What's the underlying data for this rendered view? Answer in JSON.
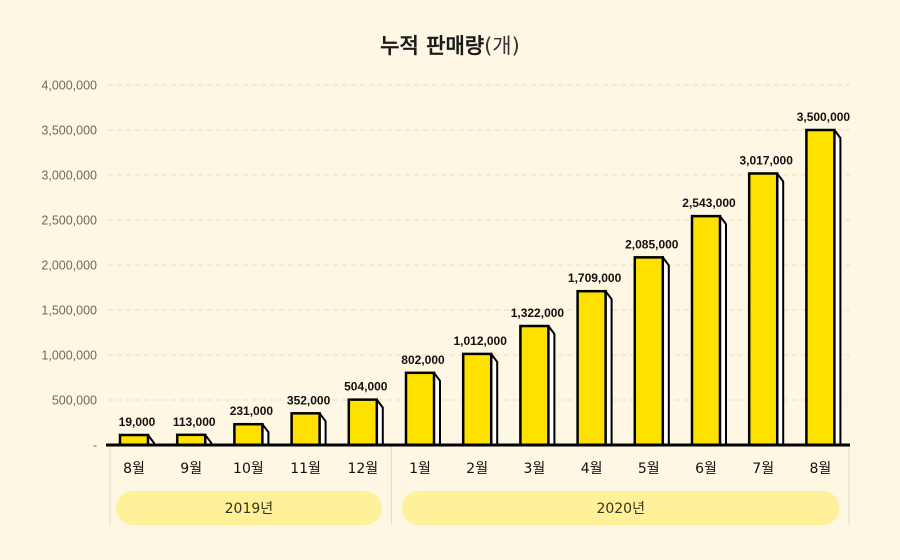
{
  "title": {
    "main": "누적 판매량",
    "unit": "(개)"
  },
  "colors": {
    "background": "#fdf7e3",
    "bar": "#ffe100",
    "bar_outline": "#000000",
    "bar_side": "#ffffff",
    "group_pill": "#fff09a",
    "grid": "#e8e0c4"
  },
  "chart_data": {
    "type": "bar",
    "title": "누적 판매량(개)",
    "xlabel": "",
    "ylabel": "",
    "ylim": [
      0,
      4000000
    ],
    "yticks": [
      0,
      500000,
      1000000,
      1500000,
      2000000,
      2500000,
      3000000,
      3500000,
      4000000
    ],
    "ytick_labels": [
      "-",
      "500,000",
      "1,000,000",
      "1,500,000",
      "2,000,000",
      "2,500,000",
      "3,000,000",
      "3,500,000",
      "4,000,000"
    ],
    "grid": true,
    "categories": [
      "8월",
      "9월",
      "10월",
      "11월",
      "12월",
      "1월",
      "2월",
      "3월",
      "4월",
      "5월",
      "6월",
      "7월",
      "8월"
    ],
    "values": [
      19000,
      113000,
      231000,
      352000,
      504000,
      802000,
      1012000,
      1322000,
      1709000,
      2085000,
      2543000,
      3017000,
      3500000
    ],
    "data_labels": [
      "19,000",
      "113,000",
      "231,000",
      "352,000",
      "504,000",
      "802,000",
      "1,012,000",
      "1,322,000",
      "1,709,000",
      "2,085,000",
      "2,543,000",
      "3,017,000",
      "3,500,000"
    ],
    "groups": [
      {
        "label": "2019년",
        "start": 0,
        "end": 4
      },
      {
        "label": "2020년",
        "start": 5,
        "end": 12
      }
    ]
  }
}
